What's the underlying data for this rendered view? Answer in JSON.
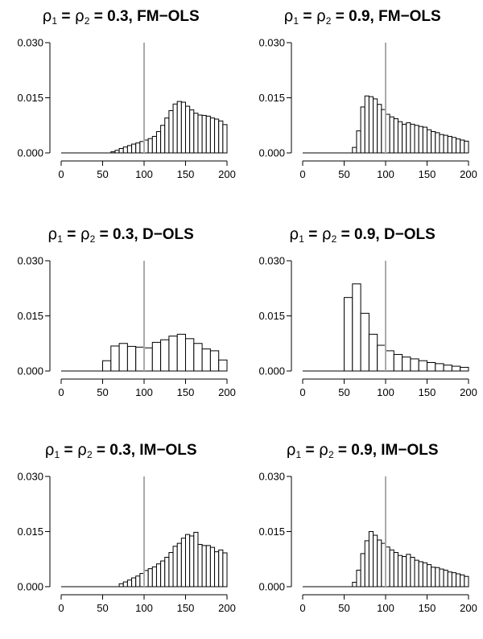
{
  "chart_data": [
    {
      "type": "bar",
      "title_parts": {
        "s1": "ρ",
        "sub1": "1",
        "eq1": " = ",
        "s2": "ρ",
        "sub2": "2",
        "rest": " = 0.3, FM−OLS"
      },
      "bin_width": 5,
      "bins_start": [
        60,
        65,
        70,
        75,
        80,
        85,
        90,
        95,
        100,
        105,
        110,
        115,
        120,
        125,
        130,
        135,
        140,
        145,
        150,
        155,
        160,
        165,
        170,
        175,
        180,
        185,
        190,
        195
      ],
      "values": [
        0.0003,
        0.0007,
        0.0012,
        0.0016,
        0.002,
        0.0024,
        0.0027,
        0.0031,
        0.0035,
        0.0039,
        0.0045,
        0.0058,
        0.0075,
        0.0095,
        0.0115,
        0.0133,
        0.014,
        0.0138,
        0.0127,
        0.0117,
        0.0108,
        0.0103,
        0.0102,
        0.01,
        0.0095,
        0.0092,
        0.0087,
        0.0077
      ],
      "xlim": [
        0,
        200
      ],
      "ylim": [
        0,
        0.03
      ],
      "xticks": [
        "0",
        "50",
        "100",
        "150",
        "200"
      ],
      "yticks": [
        "0.000",
        "0.015",
        "0.030"
      ],
      "vline": 100,
      "vline_color": "#aaaaaa"
    },
    {
      "type": "bar",
      "title_parts": {
        "s1": "ρ",
        "sub1": "1",
        "eq1": " = ",
        "s2": "ρ",
        "sub2": "2",
        "rest": " = 0.9, FM−OLS"
      },
      "bin_width": 5,
      "bins_start": [
        60,
        65,
        70,
        75,
        80,
        85,
        90,
        95,
        100,
        105,
        110,
        115,
        120,
        125,
        130,
        135,
        140,
        145,
        150,
        155,
        160,
        165,
        170,
        175,
        180,
        185,
        190,
        195
      ],
      "values": [
        0.0015,
        0.006,
        0.0125,
        0.0155,
        0.0153,
        0.0147,
        0.0132,
        0.0118,
        0.0105,
        0.0098,
        0.0093,
        0.0085,
        0.0078,
        0.0082,
        0.0078,
        0.0075,
        0.0072,
        0.007,
        0.0063,
        0.0058,
        0.0055,
        0.005,
        0.0048,
        0.0045,
        0.0042,
        0.0038,
        0.0035,
        0.0032
      ],
      "xlim": [
        0,
        200
      ],
      "ylim": [
        0,
        0.03
      ],
      "xticks": [
        "0",
        "50",
        "100",
        "150",
        "200"
      ],
      "yticks": [
        "0.000",
        "0.015",
        "0.030"
      ],
      "vline": 100,
      "vline_color": "#aaaaaa"
    },
    {
      "type": "bar",
      "title_parts": {
        "s1": "ρ",
        "sub1": "1",
        "eq1": " = ",
        "s2": "ρ",
        "sub2": "2",
        "rest": " = 0.3, D−OLS"
      },
      "bin_width": 10,
      "bins_start": [
        50,
        60,
        70,
        80,
        90,
        100,
        110,
        120,
        130,
        140,
        150,
        160,
        170,
        180,
        190
      ],
      "values": [
        0.0028,
        0.0068,
        0.0075,
        0.0067,
        0.0065,
        0.0063,
        0.0078,
        0.0085,
        0.0095,
        0.01,
        0.0088,
        0.0075,
        0.006,
        0.0055,
        0.003
      ],
      "xlim": [
        0,
        200
      ],
      "ylim": [
        0,
        0.03
      ],
      "xticks": [
        "0",
        "50",
        "100",
        "150",
        "200"
      ],
      "yticks": [
        "0.000",
        "0.015",
        "0.030"
      ],
      "vline": 100,
      "vline_color": "#aaaaaa"
    },
    {
      "type": "bar",
      "title_parts": {
        "s1": "ρ",
        "sub1": "1",
        "eq1": " = ",
        "s2": "ρ",
        "sub2": "2",
        "rest": " = 0.9, D−OLS"
      },
      "bin_width": 10,
      "bins_start": [
        50,
        60,
        70,
        80,
        90,
        100,
        110,
        120,
        130,
        140,
        150,
        160,
        170,
        180,
        190
      ],
      "values": [
        0.02,
        0.0237,
        0.0157,
        0.01,
        0.007,
        0.0055,
        0.0045,
        0.0038,
        0.0033,
        0.0028,
        0.0023,
        0.002,
        0.0016,
        0.0013,
        0.001
      ],
      "xlim": [
        0,
        200
      ],
      "ylim": [
        0,
        0.03
      ],
      "xticks": [
        "0",
        "50",
        "100",
        "150",
        "200"
      ],
      "yticks": [
        "0.000",
        "0.015",
        "0.030"
      ],
      "vline": 100,
      "vline_color": "#aaaaaa"
    },
    {
      "type": "bar",
      "title_parts": {
        "s1": "ρ",
        "sub1": "1",
        "eq1": " = ",
        "s2": "ρ",
        "sub2": "2",
        "rest": " = 0.3, IM−OLS"
      },
      "bin_width": 5,
      "bins_start": [
        70,
        75,
        80,
        85,
        90,
        95,
        100,
        105,
        110,
        115,
        120,
        125,
        130,
        135,
        140,
        145,
        150,
        155,
        160,
        165,
        170,
        175,
        180,
        185,
        190,
        195
      ],
      "values": [
        0.0008,
        0.0013,
        0.0018,
        0.0024,
        0.0029,
        0.0036,
        0.0044,
        0.0049,
        0.0054,
        0.0062,
        0.007,
        0.008,
        0.0093,
        0.011,
        0.0118,
        0.0132,
        0.0142,
        0.0138,
        0.0148,
        0.0115,
        0.0112,
        0.0112,
        0.0107,
        0.0095,
        0.01,
        0.0092
      ],
      "xlim": [
        0,
        200
      ],
      "ylim": [
        0,
        0.03
      ],
      "xticks": [
        "0",
        "50",
        "100",
        "150",
        "200"
      ],
      "yticks": [
        "0.000",
        "0.015",
        "0.030"
      ],
      "vline": 100,
      "vline_color": "#aaaaaa"
    },
    {
      "type": "bar",
      "title_parts": {
        "s1": "ρ",
        "sub1": "1",
        "eq1": " = ",
        "s2": "ρ",
        "sub2": "2",
        "rest": " = 0.9, IM−OLS"
      },
      "bin_width": 5,
      "bins_start": [
        60,
        65,
        70,
        75,
        80,
        85,
        90,
        95,
        100,
        105,
        110,
        115,
        120,
        125,
        130,
        135,
        140,
        145,
        150,
        155,
        160,
        165,
        170,
        175,
        180,
        185,
        190,
        195
      ],
      "values": [
        0.0012,
        0.0045,
        0.009,
        0.0125,
        0.015,
        0.014,
        0.0127,
        0.0118,
        0.0108,
        0.01,
        0.0093,
        0.0085,
        0.0082,
        0.0088,
        0.008,
        0.0072,
        0.0068,
        0.0065,
        0.006,
        0.0053,
        0.0052,
        0.0048,
        0.0045,
        0.004,
        0.0038,
        0.0035,
        0.0032,
        0.0028
      ],
      "xlim": [
        0,
        200
      ],
      "ylim": [
        0,
        0.03
      ],
      "xticks": [
        "0",
        "50",
        "100",
        "150",
        "200"
      ],
      "yticks": [
        "0.000",
        "0.015",
        "0.030"
      ],
      "vline": 100,
      "vline_color": "#aaaaaa"
    }
  ]
}
